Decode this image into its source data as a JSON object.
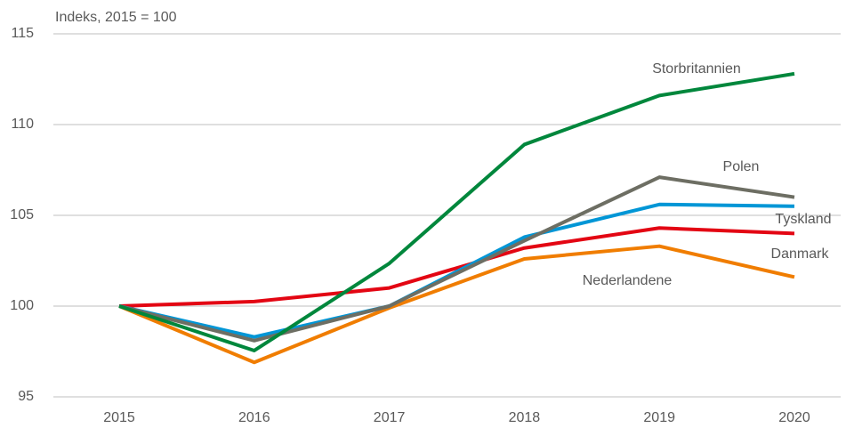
{
  "chart_data": {
    "type": "line",
    "y_label": "Indeks, 2015 = 100",
    "categories": [
      "2015",
      "2016",
      "2017",
      "2018",
      "2019",
      "2020"
    ],
    "series": [
      {
        "name": "Nederlandene",
        "color": "#f07d00",
        "values": [
          100,
          96.9,
          99.9,
          102.6,
          103.3,
          101.6
        ]
      },
      {
        "name": "Danmark",
        "color": "#e30613",
        "values": [
          100,
          100.25,
          101.0,
          103.2,
          104.3,
          104.0
        ]
      },
      {
        "name": "Tyskland",
        "color": "#0096d6",
        "values": [
          100,
          98.3,
          100,
          103.8,
          105.6,
          105.5
        ]
      },
      {
        "name": "Polen",
        "color": "#6d6e63",
        "values": [
          100,
          98.1,
          100,
          103.6,
          107.1,
          106.0
        ]
      },
      {
        "name": "Storbritannien",
        "color": "#00873c",
        "values": [
          100,
          97.55,
          102.35,
          108.9,
          111.6,
          112.8
        ]
      }
    ],
    "ylim": [
      95,
      115
    ],
    "yticks": [
      95,
      100,
      105,
      110,
      115
    ],
    "grid": true
  }
}
